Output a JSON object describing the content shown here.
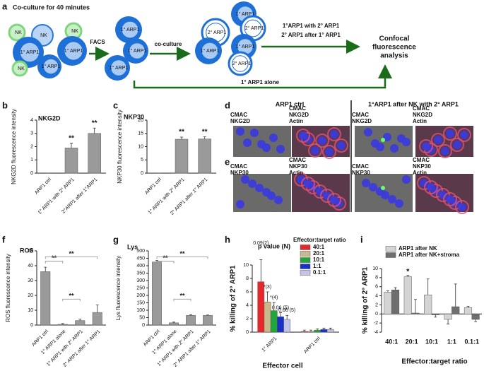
{
  "panel_a": {
    "label": "a",
    "title": "Co-culture for 40 minutes",
    "cells": [
      "NK",
      "NK",
      "NK",
      "1° ARP1",
      "1° ARP1",
      "1° ARP1",
      "NK",
      "1° ARP1",
      "1° ARP1",
      "1° ARP1",
      "1° ARP1",
      "2° ARP1",
      "2° ARP1",
      "1° ARP1",
      "1° ARP1",
      "2° ARP1"
    ],
    "facs": "FACS",
    "coculture": "co-culture",
    "condition_1": "1°ARP1 with 2° ARP1",
    "condition_2": "2° ARP1 after 1° ARP1",
    "result": [
      "Confocal",
      "fluorescence",
      "analysis"
    ],
    "alone": "1° ARP1 alone"
  },
  "panel_de": {
    "label_d": "d",
    "label_e": "e",
    "col_ctrl": "ARP1 ctrl",
    "col_exp": "1°ARP1 after NK with 2° ARP1",
    "rows": [
      [
        [
          "CMAC",
          "NKG2D"
        ],
        [
          "CMAC",
          "NKG2D",
          "Actin"
        ],
        [
          "CMAC",
          "NKG2D"
        ],
        [
          "CMAC",
          "NKG2D",
          "Actin"
        ]
      ],
      [
        [
          "CMAC",
          "NKP30"
        ],
        [
          "CMAC",
          "NKP30",
          "Actin"
        ],
        [
          "CMAC",
          "NKP30"
        ],
        [
          "CMAC",
          "NKP30",
          "Actin"
        ]
      ]
    ]
  },
  "chart_data": [
    {
      "type": "bar",
      "label": "b",
      "title": "NKG2D",
      "y_label": "NKG2D fluorescence intensity",
      "categories": [
        "ARP1 ctrl",
        "1° ARP1 with 2° ARP1",
        "2°ARP1 after 1°ARP1"
      ],
      "series": [
        {
          "color": "#9a9a9a",
          "values": [
            0,
            1.9,
            3.0
          ],
          "errors": [
            0,
            0.35,
            0.4
          ]
        }
      ],
      "ylim": [
        0,
        4
      ],
      "yticks": [
        0,
        1,
        2,
        3,
        4
      ],
      "annotations": [
        "**",
        "**"
      ]
    },
    {
      "type": "bar",
      "label": "c",
      "title": "NKP30",
      "y_label": "NKP30 fluorescence intensity",
      "categories": [
        "ARP1 ctrl",
        "1° ARP1 with 2° ARP1",
        "2° ARP1 after 1° ARP1"
      ],
      "series": [
        {
          "color": "#9a9a9a",
          "values": [
            0,
            12.8,
            12.9
          ],
          "errors": [
            0,
            0.8,
            0.8
          ]
        }
      ],
      "ylim": [
        0,
        20
      ],
      "yticks": [
        0,
        5,
        10,
        15,
        20
      ],
      "annotations": [
        "**",
        "**"
      ]
    },
    {
      "type": "bar",
      "label": "f",
      "title": "ROS",
      "y_label": "ROS fluorescence intensity",
      "categories": [
        "ARP1 ctrl",
        "1° ARP1 alone",
        "1° ARP1 with 2° ARP1",
        "2° ARP1 after 1° ARP1"
      ],
      "series": [
        {
          "color": "#9a9a9a",
          "values": [
            36,
            0.5,
            3,
            8.5
          ],
          "errors": [
            3,
            0.5,
            1,
            5
          ]
        }
      ],
      "ylim": [
        0,
        50
      ],
      "yticks": [
        0,
        10,
        20,
        30,
        40,
        50
      ],
      "annotations": [
        "**",
        "**",
        "**"
      ]
    },
    {
      "type": "bar",
      "label": "g",
      "title": "Lys",
      "y_label": "Lys fluorescence intensity",
      "categories": [
        "ARP1 ctrl",
        "1° ARP1 alone",
        "1° ARP1 with 2° ARP1",
        "2° ARP1 after 1° ARP1"
      ],
      "series": [
        {
          "color": "#9a9a9a",
          "values": [
            425,
            15,
            65,
            65
          ],
          "errors": [
            10,
            5,
            5,
            3
          ]
        }
      ],
      "ylim": [
        0,
        500
      ],
      "yticks": [
        0,
        50,
        100,
        150,
        200,
        250,
        300,
        350,
        400,
        450,
        500
      ],
      "annotations": [
        "**",
        "**",
        "**"
      ]
    },
    {
      "type": "bar",
      "label": "h",
      "y_label": "% killing of 2° ARP1",
      "x_label": "Effector cell",
      "categories": [
        "1° ARP1",
        "ARP1 ctrl"
      ],
      "series": [
        {
          "name": "40:1",
          "color": "#e8262b",
          "values": [
            7.5,
            0.1
          ],
          "errors": [
            3.3,
            0.2
          ]
        },
        {
          "name": "20:1",
          "color": "#c9b98a",
          "values": [
            4.5,
            0.1
          ],
          "errors": [
            1.5,
            0.2
          ]
        },
        {
          "name": "10:1",
          "color": "#22a53a",
          "values": [
            3.2,
            0.3
          ],
          "errors": [
            1.2,
            0.2
          ]
        },
        {
          "name": "1:1",
          "color": "#1a2fc4",
          "values": [
            2.3,
            0.4
          ],
          "errors": [
            0.6,
            0.2
          ]
        },
        {
          "name": "0.1:1",
          "color": "#c4c4e8",
          "values": [
            1.9,
            0.4
          ],
          "errors": [
            0.6,
            0.2
          ]
        }
      ],
      "ylim": [
        0,
        10
      ],
      "yticks": [
        0,
        2,
        4,
        6,
        8,
        10
      ],
      "legend": "upper right",
      "legend_title": "Effector:target ratio",
      "annotation_title": "p value (N)",
      "annotations": [
        "0.09(2)",
        "*(3)",
        "*(4)",
        "0.06 (5)",
        "0.06 (5)"
      ]
    },
    {
      "type": "bar",
      "label": "i",
      "y_label": "% killing of 2° ARP1",
      "x_label": "Effector:target ratio",
      "categories": [
        "40:1",
        "20:1",
        "10:1",
        "1:1",
        "0.1:1"
      ],
      "series": [
        {
          "name": "ARP1 after NK",
          "color": "#d4d4d4",
          "values": [
            4.8,
            8.2,
            4.2,
            -1.2,
            1.4
          ],
          "errors": [
            0.3,
            0.3,
            3.5,
            1,
            0.3
          ]
        },
        {
          "name": "ARP1 after NK+stroma",
          "color": "#6e6e6e",
          "values": [
            5.3,
            0.2,
            -0.2,
            1.6,
            -1.2
          ],
          "errors": [
            0.5,
            3,
            0.5,
            5,
            0.5
          ]
        }
      ],
      "ylim": [
        -4,
        10
      ],
      "yticks": [
        -4,
        -2,
        0,
        2,
        4,
        6,
        8,
        10
      ],
      "legend": "upper left",
      "annotations": [
        "*"
      ]
    }
  ]
}
